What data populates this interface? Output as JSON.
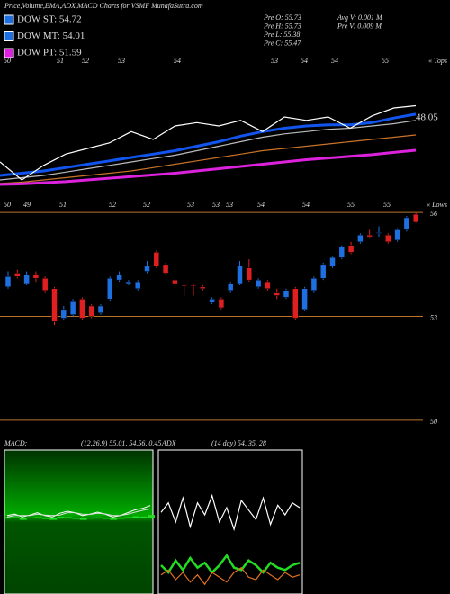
{
  "header": {
    "title": "Price,Volume,EMA,ADX,MACD Charts for VSMF MunafaSutra.com",
    "legend": [
      {
        "label": "DOW ST: 54.72",
        "color": "#1e6fe0"
      },
      {
        "label": "DOW MT: 54.01",
        "color": "#1e6fe0"
      },
      {
        "label": "DOW PT: 51.59",
        "color": "#dd22dd"
      }
    ],
    "info": [
      "Pre O: 55.73",
      "Pre H: 55.73",
      "Pre L: 55.38",
      "Pre C: 55.47",
      "Avg V: 0.001 M",
      "Pre V: 0.009 M"
    ]
  },
  "chart_data": [
    {
      "type": "line",
      "ylim": [
        41,
        53
      ],
      "annotation": "48.05",
      "tops_labels": [
        "50",
        "51",
        "52",
        "53",
        "54",
        "53",
        "54",
        "54",
        "55"
      ],
      "tops_tag": "« Tops",
      "lows_labels": [
        "50",
        "49",
        "51",
        "52",
        "52",
        "53",
        "53",
        "53",
        "54",
        "54",
        "55",
        "55"
      ],
      "lows_tag": "« Lows",
      "series": [
        {
          "color": "#c8732a",
          "values": [
            41.9,
            42.0,
            42.2,
            42.4,
            42.6,
            42.8,
            43.0,
            43.3,
            43.6,
            43.9,
            44.2,
            44.5,
            44.8,
            45.0,
            45.2,
            45.4,
            45.6,
            45.8,
            46.0,
            46.2
          ]
        },
        {
          "color": "#bbbbbb",
          "values": [
            42.2,
            42.4,
            42.6,
            42.9,
            43.2,
            43.5,
            43.8,
            44.1,
            44.4,
            44.8,
            45.2,
            45.6,
            46.0,
            46.3,
            46.5,
            46.7,
            46.8,
            47.0,
            47.2,
            47.5
          ]
        },
        {
          "color": "#dd22dd",
          "values": [
            41.8,
            41.85,
            41.95,
            42.05,
            42.2,
            42.35,
            42.5,
            42.65,
            42.8,
            43.0,
            43.2,
            43.4,
            43.6,
            43.8,
            44.0,
            44.15,
            44.3,
            44.45,
            44.65,
            44.84
          ]
        },
        {
          "color": "#1155ee",
          "values": [
            42.6,
            42.8,
            43.0,
            43.3,
            43.6,
            43.9,
            44.2,
            44.5,
            44.8,
            45.2,
            45.6,
            46.1,
            46.5,
            46.8,
            47.0,
            47.1,
            47.1,
            47.3,
            47.7,
            48.05
          ]
        },
        {
          "color": "#ffffff",
          "values": [
            43.8,
            42.2,
            43.5,
            44.5,
            45.0,
            45.5,
            46.5,
            45.8,
            47.0,
            47.3,
            47.0,
            47.5,
            46.5,
            47.8,
            47.5,
            47.8,
            46.8,
            47.9,
            48.6,
            48.8
          ]
        }
      ]
    },
    {
      "type": "candlestick",
      "ylim": [
        49.79,
        56.16
      ],
      "yticks": [
        56,
        53,
        50
      ],
      "grid": true,
      "grid_color": "#b8732a",
      "up_color": "#1e6fe0",
      "down_color": "#e02020",
      "open": [
        53.85,
        54.25,
        53.95,
        54.2,
        54.1,
        53.8,
        52.95,
        53.05,
        53.5,
        53.3,
        53.1,
        53.5,
        54.05,
        53.95,
        53.8,
        54.3,
        54.85,
        54.5,
        54.05,
        53.9,
        53.9,
        53.85,
        53.4,
        53.5,
        53.75,
        53.95,
        54.4,
        53.85,
        54.0,
        53.7,
        53.55,
        53.8,
        53.2,
        53.75,
        54.1,
        54.45,
        54.7,
        55.05,
        55.15,
        55.35,
        55.4,
        55.35,
        55.2,
        55.5,
        55.95
      ],
      "high": [
        54.3,
        54.35,
        54.3,
        54.3,
        54.15,
        53.85,
        53.3,
        53.5,
        53.55,
        53.35,
        53.35,
        54.15,
        54.3,
        54.05,
        54.05,
        54.6,
        54.9,
        54.55,
        54.1,
        53.95,
        53.95,
        53.9,
        53.55,
        53.55,
        54.0,
        54.6,
        54.65,
        54.1,
        54.05,
        53.8,
        53.8,
        53.85,
        53.85,
        54.15,
        54.55,
        54.75,
        55.05,
        55.15,
        55.4,
        55.5,
        55.6,
        55.4,
        55.55,
        55.9,
        56.0
      ],
      "low": [
        53.8,
        54.1,
        53.9,
        54.0,
        53.7,
        52.75,
        52.9,
        53.0,
        52.9,
        52.95,
        53.05,
        53.45,
        54.0,
        53.9,
        53.75,
        54.25,
        54.4,
        54.2,
        53.9,
        53.6,
        53.6,
        53.75,
        53.35,
        53.2,
        53.7,
        53.9,
        54.0,
        53.8,
        53.75,
        53.5,
        53.5,
        52.9,
        53.15,
        53.7,
        54.05,
        54.4,
        54.65,
        54.8,
        55.1,
        55.25,
        55.3,
        55.1,
        55.15,
        55.45,
        55.7
      ],
      "close": [
        54.15,
        54.15,
        54.2,
        54.1,
        53.75,
        52.85,
        53.2,
        53.45,
        52.95,
        53.0,
        53.3,
        54.1,
        54.2,
        54.0,
        54.0,
        54.45,
        54.45,
        54.25,
        53.95,
        53.88,
        53.88,
        53.8,
        53.5,
        53.25,
        53.95,
        54.45,
        54.05,
        54.05,
        53.8,
        53.6,
        53.75,
        52.95,
        53.8,
        54.1,
        54.5,
        54.7,
        55.0,
        54.85,
        55.35,
        55.3,
        55.42,
        55.15,
        55.5,
        55.85,
        55.72
      ]
    },
    {
      "type": "macd",
      "title": "MACD:",
      "subtitle": "(12,26,9) 55.01, 54.56, 0.45",
      "ylim": [
        -1.5,
        1.5
      ],
      "series": [
        {
          "color": "#ffffff",
          "values": [
            0.1,
            0.15,
            0.05,
            0.12,
            0.2,
            0.1,
            0.05,
            0.18,
            0.25,
            0.2,
            0.1,
            0.15,
            0.22,
            0.15,
            0.05,
            0.1,
            0.2,
            0.3,
            0.35,
            0.45
          ]
        },
        {
          "color": "#dddddd",
          "values": [
            0.05,
            0.1,
            0.1,
            0.1,
            0.15,
            0.12,
            0.1,
            0.12,
            0.2,
            0.2,
            0.15,
            0.14,
            0.18,
            0.16,
            0.1,
            0.1,
            0.15,
            0.22,
            0.28,
            0.33
          ]
        }
      ],
      "histogram": {
        "color": "#22dd22",
        "values": [
          0.05,
          0.05,
          -0.05,
          0.02,
          0.05,
          -0.02,
          -0.05,
          0.06,
          0.05,
          0.0,
          -0.05,
          0.01,
          0.04,
          -0.01,
          -0.05,
          0.0,
          0.05,
          0.08,
          0.07,
          0.12
        ]
      }
    },
    {
      "type": "adx",
      "title": "ADX",
      "subtitle": "(14 day) 54, 35, 28",
      "ylim": [
        0,
        60
      ],
      "series": [
        {
          "color": "#ffffff",
          "values": [
            34,
            38,
            30,
            40,
            28,
            38,
            33,
            41,
            30,
            36,
            27,
            39,
            35,
            31,
            40,
            29,
            37,
            33,
            38,
            36
          ]
        },
        {
          "color": "#22dd22",
          "values": [
            12,
            9,
            14,
            10,
            15,
            11,
            13,
            9,
            12,
            16,
            11,
            10,
            14,
            12,
            9,
            13,
            11,
            10,
            12,
            13
          ]
        },
        {
          "color": "#e07020",
          "values": [
            8,
            10,
            6,
            9,
            5,
            8,
            4,
            9,
            7,
            5,
            9,
            11,
            7,
            6,
            10,
            8,
            6,
            9,
            7,
            8
          ]
        }
      ]
    }
  ]
}
